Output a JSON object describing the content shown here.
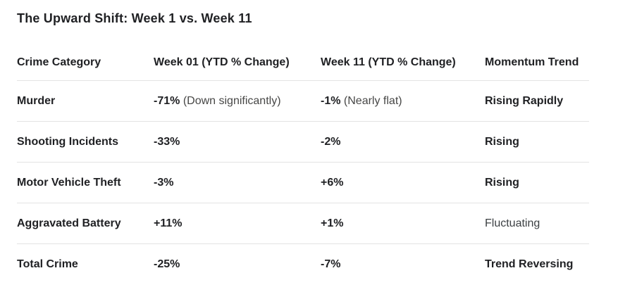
{
  "title": "The Upward Shift: Week 1 vs. Week 11",
  "table": {
    "columns": [
      "Crime Category",
      "Week 01 (YTD % Change)",
      "Week 11 (YTD % Change)",
      "Momentum Trend"
    ],
    "rows": [
      {
        "category": "Murder",
        "week01": "-71%",
        "week01_note": "(Down significantly)",
        "week11": "-1%",
        "week11_note": "(Nearly flat)",
        "trend": "Rising Rapidly",
        "trend_emphasis": "bold"
      },
      {
        "category": "Shooting Incidents",
        "week01": "-33%",
        "week01_note": "",
        "week11": "-2%",
        "week11_note": "",
        "trend": "Rising",
        "trend_emphasis": "bold"
      },
      {
        "category": "Motor Vehicle Theft",
        "week01": "-3%",
        "week01_note": "",
        "week11": "+6%",
        "week11_note": "",
        "trend": "Rising",
        "trend_emphasis": "bold"
      },
      {
        "category": "Aggravated Battery",
        "week01": "+11%",
        "week01_note": "",
        "week11": "+1%",
        "week11_note": "",
        "trend": "Fluctuating",
        "trend_emphasis": "regular"
      },
      {
        "category": "Total Crime",
        "week01": "-25%",
        "week01_note": "",
        "week11": "-7%",
        "week11_note": "",
        "trend": "Trend Reversing",
        "trend_emphasis": "bold"
      }
    ]
  },
  "colors": {
    "text_primary": "#202124",
    "text_note": "#474746",
    "divider": "#e3e3e3",
    "background": "#ffffff"
  }
}
